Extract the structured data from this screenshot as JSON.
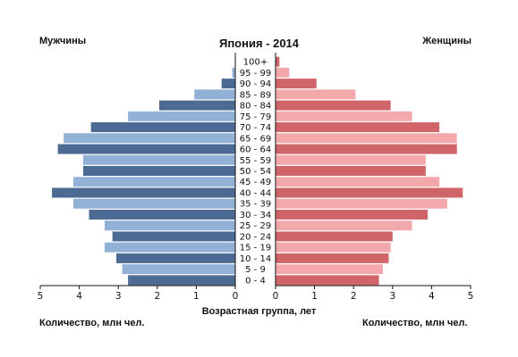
{
  "chart_data": {
    "type": "bar",
    "orientation": "horizontal",
    "subtype": "population-pyramid",
    "title": "Япония - 2014",
    "left_label": "Мужчины",
    "right_label": "Женщины",
    "xlabel_left": "Количество, млн чел.",
    "xlabel_right": "Количество, млн чел.",
    "center_label": "Возрастная группа, лет",
    "xlim": [
      0,
      5
    ],
    "x_ticks_left": [
      "5",
      "4",
      "3",
      "2",
      "1",
      "0"
    ],
    "x_ticks_right": [
      "0",
      "1",
      "2",
      "3",
      "4",
      "5"
    ],
    "categories": [
      "0 - 4",
      "5 - 9",
      "10 - 14",
      "15 - 19",
      "20 - 24",
      "25 - 29",
      "30 - 34",
      "35 - 39",
      "40 - 44",
      "45 - 49",
      "50 - 54",
      "55 - 59",
      "60 - 64",
      "65 - 69",
      "70 - 74",
      "75 - 79",
      "80 - 84",
      "85 - 89",
      "90 - 94",
      "95 - 99",
      "100+"
    ],
    "series": [
      {
        "name": "Мужчины",
        "side": "left",
        "values": [
          2.75,
          2.9,
          3.05,
          3.35,
          3.15,
          3.35,
          3.75,
          4.15,
          4.7,
          4.15,
          3.9,
          3.9,
          4.55,
          4.4,
          3.7,
          2.75,
          1.95,
          1.05,
          0.35,
          0.08,
          0.01
        ]
      },
      {
        "name": "Женщины",
        "side": "right",
        "values": [
          2.65,
          2.75,
          2.9,
          2.95,
          3.0,
          3.5,
          3.9,
          4.4,
          4.8,
          4.2,
          3.85,
          3.85,
          4.65,
          4.65,
          4.2,
          3.5,
          2.95,
          2.05,
          1.05,
          0.35,
          0.1
        ]
      }
    ],
    "colors": {
      "male_dark": "#4b6b94",
      "male_light": "#92b1d6",
      "female_dark": "#cf6569",
      "female_light": "#f3a9ab",
      "axis": "#111111"
    },
    "grid": false,
    "legend": "none"
  }
}
